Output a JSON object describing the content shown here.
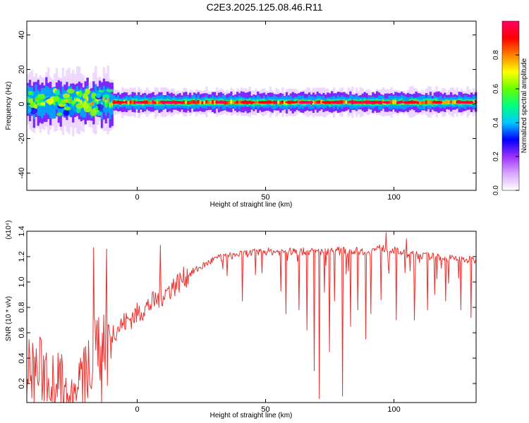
{
  "figure_title": "C2E3.2025.125.08.46.R11",
  "chart_data": [
    {
      "type": "heatmap",
      "title": "",
      "xlabel": "Height of straight line (km)",
      "ylabel": "Frequency (Hz)",
      "xlim": [
        -43,
        132
      ],
      "ylim": [
        -50,
        48
      ],
      "x_ticks": [
        0,
        50,
        100
      ],
      "y_ticks": [
        -40,
        -20,
        0,
        20,
        40
      ],
      "colorbar": {
        "label": "Normalized spectral amplitude",
        "range": [
          0,
          1
        ],
        "ticks": [
          "0.0",
          "0.2",
          "0.4",
          "0.6",
          "0.8"
        ],
        "colors": [
          "#ffffff",
          "#d9a6ff",
          "#9b30ff",
          "#0000ff",
          "#00c8ff",
          "#00ff80",
          "#66ff00",
          "#ffff00",
          "#ff8000",
          "#ff0000",
          "#ff0066"
        ]
      },
      "band": {
        "center_frequency_hz": 1,
        "half_width_hz": 2,
        "x_start_km": -43,
        "x_end_km": 132
      }
    },
    {
      "type": "line",
      "title": "",
      "xlabel": "Height of straight line (km)",
      "ylabel": "SNR (10 * v/v)",
      "y_multiplier": "(x10⁴)",
      "xlim": [
        -43,
        132
      ],
      "ylim": [
        0.05,
        1.4
      ],
      "x_ticks": [
        0,
        50,
        100
      ],
      "y_ticks": [
        0.2,
        0.4,
        0.6,
        0.8,
        1.0,
        1.2,
        1.4
      ],
      "line_color": "#e8322f",
      "profile_x": [
        -43,
        -35,
        -30,
        -25,
        -20,
        -15,
        -10,
        -5,
        0,
        5,
        10,
        15,
        20,
        25,
        30,
        40,
        50,
        60,
        70,
        80,
        90,
        95,
        100,
        105,
        110,
        120,
        125,
        132
      ],
      "profile_y": [
        0.3,
        0.3,
        0.18,
        0.12,
        0.25,
        0.55,
        0.6,
        0.68,
        0.75,
        0.82,
        0.9,
        0.98,
        1.06,
        1.12,
        1.18,
        1.22,
        1.24,
        1.24,
        1.24,
        1.25,
        1.24,
        1.27,
        1.25,
        1.22,
        1.21,
        1.19,
        1.18,
        1.17
      ],
      "spikes_up": [
        [
          -17,
          1.27
        ],
        [
          -12,
          1.26
        ],
        [
          9,
          1.29
        ],
        [
          97,
          1.39
        ],
        [
          105,
          1.34
        ]
      ],
      "dropouts": [
        [
          -14,
          0.05
        ],
        [
          35,
          1.05
        ],
        [
          41,
          0.85
        ],
        [
          56,
          0.93
        ],
        [
          58,
          0.75
        ],
        [
          63,
          0.78
        ],
        [
          66,
          0.62
        ],
        [
          69,
          0.3
        ],
        [
          71,
          0.08
        ],
        [
          73,
          0.92
        ],
        [
          75,
          0.45
        ],
        [
          77,
          0.85
        ],
        [
          80,
          0.1
        ],
        [
          83,
          0.65
        ],
        [
          86,
          0.78
        ],
        [
          89,
          0.55
        ],
        [
          91,
          0.75
        ],
        [
          95,
          0.86
        ],
        [
          101,
          0.7
        ],
        [
          108,
          0.7
        ],
        [
          113,
          0.78
        ],
        [
          116,
          0.9
        ],
        [
          120,
          0.85
        ],
        [
          126,
          0.78
        ],
        [
          130,
          0.72
        ]
      ],
      "point_count": 620
    }
  ]
}
